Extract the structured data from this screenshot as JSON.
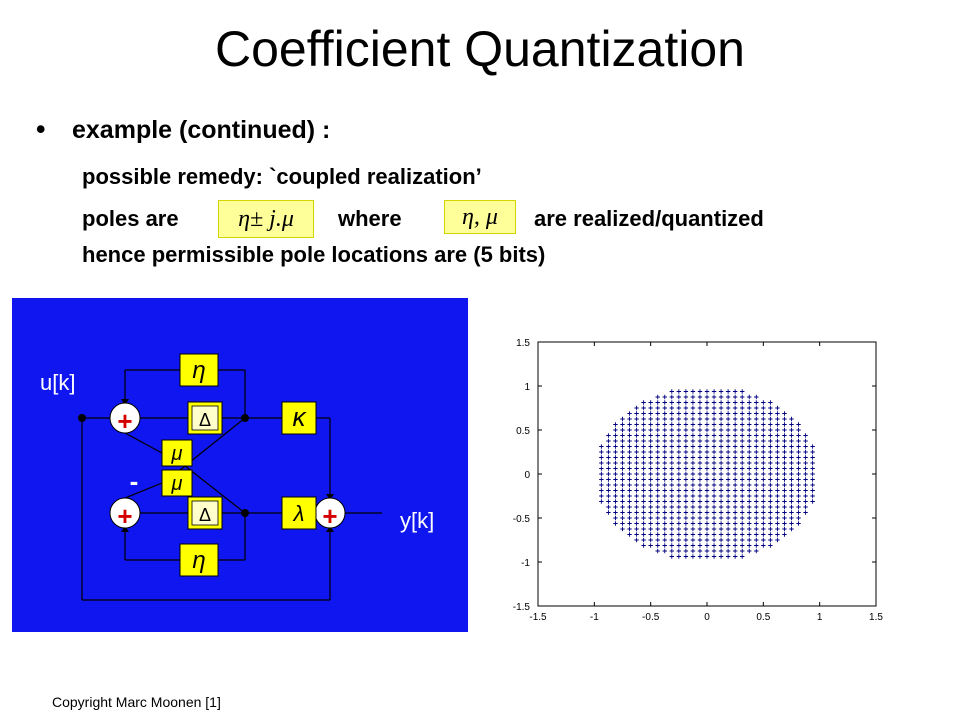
{
  "title": "Coefficient Quantization",
  "bullet_symbol": "•",
  "bullet_text": "example (continued) :",
  "line1": "possible remedy: `coupled realization’",
  "line2": {
    "prefix": "poles are",
    "formula1": "η± j.μ",
    "middle": "where",
    "formula2": "η, μ",
    "suffix": "are realized/quantized"
  },
  "line3": "hence permissible pole locations are (5 bits)",
  "diagram": {
    "input_label": "u[k]",
    "output_label": "y[k]",
    "minus_sign": "-",
    "plus_sign": "+",
    "eta": "η",
    "mu": "μ",
    "delta": "Δ",
    "kappa": "κ",
    "lambda": "λ",
    "background": "#0f16f0",
    "box_color": "#ffff00"
  },
  "chart_data": {
    "type": "scatter",
    "title": "",
    "xlabel": "",
    "ylabel": "",
    "xlim": [
      -1.5,
      1.5
    ],
    "ylim": [
      -1.5,
      1.5
    ],
    "xticks": [
      "-1.5",
      "-1",
      "-0.5",
      "0",
      "0.5",
      "1",
      "1.5"
    ],
    "yticks": [
      "1.5",
      "1",
      "0.5",
      "0",
      "-0.5",
      "-1",
      "-1.5"
    ],
    "marker": "+",
    "marker_color": "#000080",
    "grid_step": 0.0625,
    "region": "all points eta ± j·mu with eta, mu on a 5-bit grid (step 1/16) inside the unit circle"
  },
  "copyright": "Copyright Marc Moonen [1]"
}
